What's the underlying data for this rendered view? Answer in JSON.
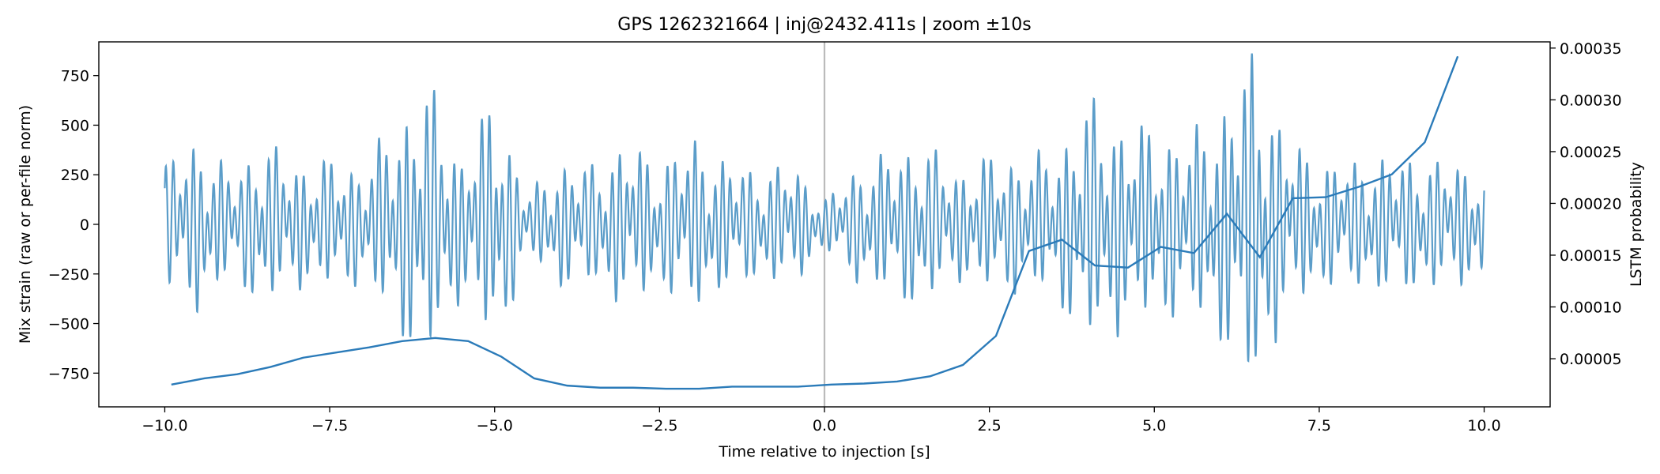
{
  "chart_data": {
    "type": "line",
    "title": "GPS 1262321664 | inj@2432.411s | zoom ±10s",
    "xlabel": "Time relative to injection [s]",
    "ylabel": "Mix strain (raw or per-file norm)",
    "y2label": "LSTM probability",
    "xlim": [
      -11,
      11
    ],
    "ylim": [
      -920,
      920
    ],
    "y2lim": [
      3.5e-06,
      0.000356
    ],
    "x_ticks": [
      -10,
      -7.5,
      -5,
      -2.5,
      0,
      2.5,
      5,
      7.5,
      10
    ],
    "x_tick_labels": [
      "−10.0",
      "−7.5",
      "−5.0",
      "−2.5",
      "0.0",
      "2.5",
      "5.0",
      "7.5",
      "10.0"
    ],
    "y_ticks": [
      -750,
      -500,
      -250,
      0,
      250,
      500,
      750
    ],
    "y_tick_labels": [
      "−750",
      "−500",
      "−250",
      "0",
      "250",
      "500",
      "750"
    ],
    "y2_ticks": [
      5e-05,
      0.0001,
      0.00015,
      0.0002,
      0.00025,
      0.0003,
      0.00035
    ],
    "y2_tick_labels": [
      "0.00005",
      "0.00010",
      "0.00015",
      "0.00020",
      "0.00025",
      "0.00030",
      "0.00035"
    ],
    "injection_marker_x": 0,
    "grid": false,
    "colors": {
      "strain": "#5b9dc9",
      "prob": "#2b7bb9",
      "marker": "#bbbbbb"
    },
    "series": [
      {
        "axis": "left",
        "x": [
          -10,
          -9.5,
          -9.0,
          -8.5,
          -8.0,
          -7.5,
          -7.0,
          -6.5,
          -6.0,
          -5.5,
          -5.0,
          -4.5,
          -4.0,
          -3.5,
          -3.0,
          -2.5,
          -2.0,
          -1.5,
          -1.0,
          -0.5,
          0,
          0.5,
          1.0,
          1.5,
          2.0,
          2.5,
          3.0,
          3.5,
          4.0,
          4.5,
          5.0,
          5.5,
          6.0,
          6.5,
          7.0,
          7.5,
          8.0,
          8.5,
          9.0,
          9.5,
          10.0
        ],
        "values": [
          300,
          420,
          250,
          400,
          300,
          310,
          280,
          500,
          680,
          330,
          620,
          150,
          300,
          290,
          400,
          300,
          420,
          310,
          260,
          300,
          120,
          280,
          350,
          400,
          260,
          330,
          320,
          350,
          600,
          500,
          460,
          420,
          560,
          840,
          430,
          300,
          300,
          330,
          320,
          300,
          280
        ]
      },
      {
        "axis": "right",
        "x": [
          -9.9,
          -9.4,
          -8.9,
          -8.4,
          -7.9,
          -7.4,
          -6.9,
          -6.4,
          -5.9,
          -5.4,
          -4.9,
          -4.4,
          -3.9,
          -3.4,
          -2.9,
          -2.4,
          -1.9,
          -1.4,
          -0.9,
          -0.4,
          0.1,
          0.6,
          1.1,
          1.6,
          2.1,
          2.6,
          3.1,
          3.6,
          4.1,
          4.6,
          5.1,
          5.6,
          6.1,
          6.6,
          7.1,
          7.6,
          8.1,
          8.6,
          9.1,
          9.6
        ],
        "values": [
          2.5e-05,
          3.1e-05,
          3.5e-05,
          4.2e-05,
          5.1e-05,
          5.6e-05,
          6.1e-05,
          6.7e-05,
          7e-05,
          6.7e-05,
          5.2e-05,
          3.1e-05,
          2.4e-05,
          2.2e-05,
          2.2e-05,
          2.1e-05,
          2.1e-05,
          2.3e-05,
          2.3e-05,
          2.3e-05,
          2.5e-05,
          2.6e-05,
          2.8e-05,
          3.3e-05,
          4.4e-05,
          7.2e-05,
          0.000154,
          0.000165,
          0.00014,
          0.000138,
          0.000158,
          0.000152,
          0.00019,
          0.000148,
          0.000205,
          0.000206,
          0.000216,
          0.000228,
          0.000259,
          0.000342
        ]
      }
    ]
  }
}
